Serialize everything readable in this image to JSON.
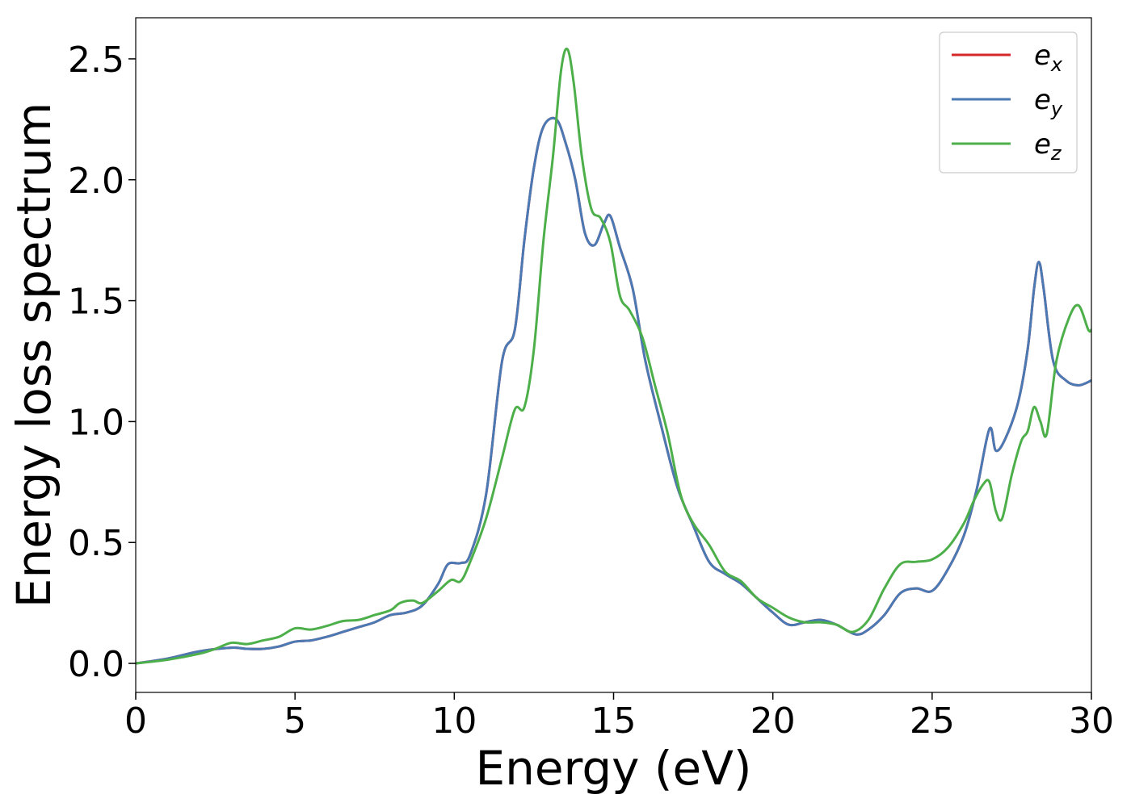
{
  "chart_data": {
    "type": "line",
    "xlabel": "Energy (eV)",
    "ylabel": "Energy loss spectrum",
    "xlim": [
      0,
      30
    ],
    "ylim": [
      -0.12,
      2.67
    ],
    "xticks": [
      0,
      5,
      10,
      15,
      20,
      25,
      30
    ],
    "xtick_labels": [
      "0",
      "5",
      "10",
      "15",
      "20",
      "25",
      "30"
    ],
    "yticks": [
      0.0,
      0.5,
      1.0,
      1.5,
      2.0,
      2.5
    ],
    "ytick_labels": [
      "0.0",
      "0.5",
      "1.0",
      "1.5",
      "2.0",
      "2.5"
    ],
    "grid": false,
    "legend_position": "top-right",
    "series": [
      {
        "name": "e_x",
        "label_main": "e",
        "label_sub": "x",
        "color": "#d62728",
        "x": [
          0,
          1,
          2,
          3,
          3.5,
          4,
          4.5,
          5,
          5.5,
          6,
          6.5,
          7,
          7.5,
          8,
          8.5,
          9,
          9.5,
          9.8,
          10.2,
          10.5,
          11,
          11.5,
          11.9,
          12.2,
          12.5,
          12.8,
          13.2,
          13.5,
          13.8,
          14.1,
          14.4,
          14.7,
          14.9,
          15.2,
          15.6,
          16,
          16.5,
          17,
          17.5,
          18,
          18.5,
          19,
          19.5,
          20,
          20.5,
          21,
          21.5,
          22,
          22.6,
          23,
          23.5,
          24,
          24.5,
          25,
          25.5,
          26,
          26.4,
          26.8,
          27,
          27.3,
          27.7,
          28,
          28.2,
          28.35,
          28.5,
          28.8,
          29.2,
          29.6,
          30
        ],
        "y": [
          0,
          0.02,
          0.05,
          0.065,
          0.06,
          0.06,
          0.07,
          0.09,
          0.095,
          0.11,
          0.13,
          0.15,
          0.17,
          0.2,
          0.21,
          0.24,
          0.33,
          0.41,
          0.415,
          0.45,
          0.7,
          1.25,
          1.38,
          1.75,
          2.05,
          2.22,
          2.25,
          2.15,
          2.0,
          1.78,
          1.73,
          1.82,
          1.85,
          1.72,
          1.55,
          1.25,
          0.98,
          0.73,
          0.57,
          0.42,
          0.37,
          0.33,
          0.27,
          0.21,
          0.16,
          0.17,
          0.18,
          0.16,
          0.12,
          0.14,
          0.2,
          0.29,
          0.31,
          0.3,
          0.39,
          0.53,
          0.72,
          0.97,
          0.88,
          0.93,
          1.08,
          1.3,
          1.55,
          1.66,
          1.55,
          1.25,
          1.17,
          1.15,
          1.17
        ]
      },
      {
        "name": "e_y",
        "label_main": "e",
        "label_sub": "y",
        "color": "#4a79b4",
        "x": [
          0,
          1,
          2,
          3,
          3.5,
          4,
          4.5,
          5,
          5.5,
          6,
          6.5,
          7,
          7.5,
          8,
          8.5,
          9,
          9.5,
          9.8,
          10.2,
          10.5,
          11,
          11.5,
          11.9,
          12.2,
          12.5,
          12.8,
          13.2,
          13.5,
          13.8,
          14.1,
          14.4,
          14.7,
          14.9,
          15.2,
          15.6,
          16,
          16.5,
          17,
          17.5,
          18,
          18.5,
          19,
          19.5,
          20,
          20.5,
          21,
          21.5,
          22,
          22.6,
          23,
          23.5,
          24,
          24.5,
          25,
          25.5,
          26,
          26.4,
          26.8,
          27,
          27.3,
          27.7,
          28,
          28.2,
          28.35,
          28.5,
          28.8,
          29.2,
          29.6,
          30
        ],
        "y": [
          0,
          0.02,
          0.05,
          0.065,
          0.06,
          0.06,
          0.07,
          0.09,
          0.095,
          0.11,
          0.13,
          0.15,
          0.17,
          0.2,
          0.21,
          0.24,
          0.33,
          0.41,
          0.415,
          0.45,
          0.7,
          1.25,
          1.38,
          1.75,
          2.05,
          2.22,
          2.25,
          2.15,
          2.0,
          1.78,
          1.73,
          1.82,
          1.85,
          1.72,
          1.55,
          1.25,
          0.98,
          0.73,
          0.57,
          0.42,
          0.37,
          0.33,
          0.27,
          0.21,
          0.16,
          0.17,
          0.18,
          0.16,
          0.12,
          0.14,
          0.2,
          0.29,
          0.31,
          0.3,
          0.39,
          0.53,
          0.72,
          0.97,
          0.88,
          0.93,
          1.08,
          1.3,
          1.55,
          1.66,
          1.55,
          1.25,
          1.17,
          1.15,
          1.17
        ]
      },
      {
        "name": "e_z",
        "label_main": "e",
        "label_sub": "z",
        "color": "#4daf4a",
        "x": [
          0,
          1,
          2,
          2.5,
          3,
          3.5,
          4,
          4.5,
          5,
          5.5,
          6,
          6.5,
          7,
          7.5,
          8,
          8.3,
          8.7,
          9,
          9.5,
          9.9,
          10.2,
          10.5,
          11,
          11.5,
          11.9,
          12.2,
          12.5,
          12.8,
          13.1,
          13.35,
          13.55,
          13.75,
          14,
          14.3,
          14.6,
          14.9,
          15.2,
          15.5,
          15.9,
          16.3,
          16.7,
          17.1,
          17.5,
          18,
          18.5,
          19,
          19.5,
          20,
          20.5,
          21,
          21.5,
          22,
          22.5,
          23,
          23.5,
          24,
          24.5,
          25,
          25.5,
          26,
          26.3,
          26.6,
          26.8,
          27,
          27.2,
          27.5,
          27.8,
          28,
          28.2,
          28.4,
          28.6,
          28.9,
          29.3,
          29.6,
          29.9,
          30
        ],
        "y": [
          0,
          0.015,
          0.04,
          0.06,
          0.085,
          0.08,
          0.095,
          0.11,
          0.145,
          0.14,
          0.155,
          0.175,
          0.18,
          0.2,
          0.22,
          0.25,
          0.26,
          0.25,
          0.3,
          0.345,
          0.34,
          0.42,
          0.6,
          0.85,
          1.05,
          1.06,
          1.3,
          1.75,
          2.1,
          2.45,
          2.54,
          2.4,
          2.1,
          1.88,
          1.84,
          1.74,
          1.52,
          1.46,
          1.35,
          1.15,
          0.95,
          0.7,
          0.58,
          0.49,
          0.38,
          0.34,
          0.27,
          0.23,
          0.19,
          0.17,
          0.17,
          0.16,
          0.13,
          0.18,
          0.31,
          0.41,
          0.42,
          0.43,
          0.48,
          0.58,
          0.67,
          0.74,
          0.75,
          0.63,
          0.6,
          0.78,
          0.92,
          0.96,
          1.06,
          1.0,
          0.95,
          1.25,
          1.43,
          1.48,
          1.38,
          1.38
        ]
      }
    ]
  }
}
